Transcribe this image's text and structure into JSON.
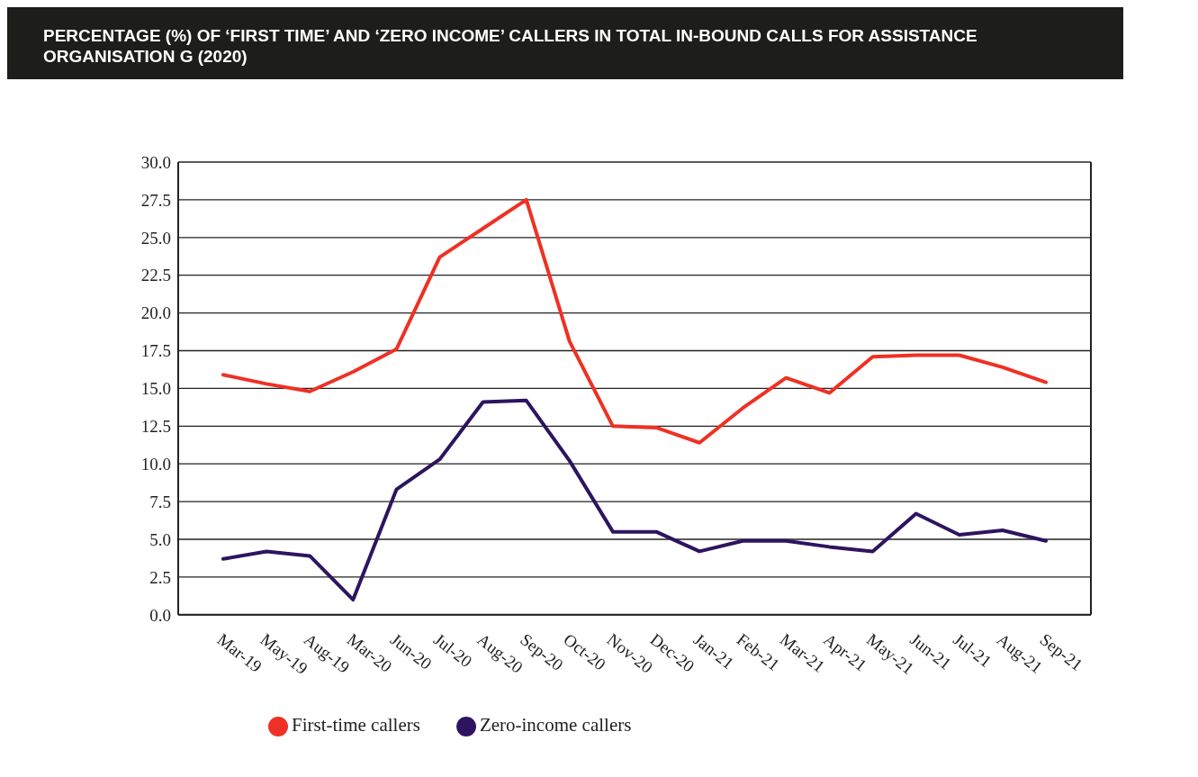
{
  "chart_data": {
    "type": "line",
    "title": "PERCENTAGE (%) OF ‘FIRST TIME’ AND ‘ZERO INCOME’ CALLERS IN TOTAL IN-BOUND CALLS FOR ASSISTANCE ORGANISATION G (2020)",
    "categories": [
      "Mar-19",
      "May-19",
      "Aug-19",
      "Mar-20",
      "Jun-20",
      "Jul-20",
      "Aug-20",
      "Sep-20",
      "Oct-20",
      "Nov-20",
      "Dec-20",
      "Jan-21",
      "Feb-21",
      "Mar-21",
      "Apr-21",
      "May-21",
      "Jun-21",
      "Jul-21",
      "Aug-21",
      "Sep-21"
    ],
    "series": [
      {
        "name": "First-time callers",
        "color": "#ee3124",
        "values": [
          15.9,
          15.3,
          14.8,
          16.1,
          17.6,
          23.7,
          25.6,
          27.5,
          18.1,
          12.5,
          12.4,
          11.4,
          13.7,
          15.7,
          14.7,
          17.1,
          17.2,
          17.2,
          16.4,
          15.4
        ]
      },
      {
        "name": "Zero-income callers",
        "color": "#2e1460",
        "values": [
          3.7,
          4.2,
          3.9,
          1.0,
          8.3,
          10.3,
          14.1,
          14.2,
          10.2,
          5.5,
          5.5,
          4.2,
          4.9,
          4.9,
          4.5,
          4.2,
          6.7,
          5.3,
          5.6,
          4.9
        ]
      }
    ],
    "ylim": [
      0,
      30
    ],
    "yticks": [
      {
        "value": 0,
        "label": "0.0"
      },
      {
        "value": 2.5,
        "label": "2.5"
      },
      {
        "value": 5,
        "label": "5.0"
      },
      {
        "value": 7.5,
        "label": "7.5"
      },
      {
        "value": 10,
        "label": "10.0"
      },
      {
        "value": 12.5,
        "label": "12.5"
      },
      {
        "value": 15,
        "label": "15.0"
      },
      {
        "value": 17.5,
        "label": "17.5"
      },
      {
        "value": 20,
        "label": "20.0"
      },
      {
        "value": 22.5,
        "label": "22.5"
      },
      {
        "value": 25,
        "label": "25.0"
      },
      {
        "value": 27.5,
        "label": "27.5"
      },
      {
        "value": 30,
        "label": "30.0"
      }
    ],
    "grid": "y",
    "legend": "bottom left",
    "marker": "none",
    "line_style": "solid"
  }
}
